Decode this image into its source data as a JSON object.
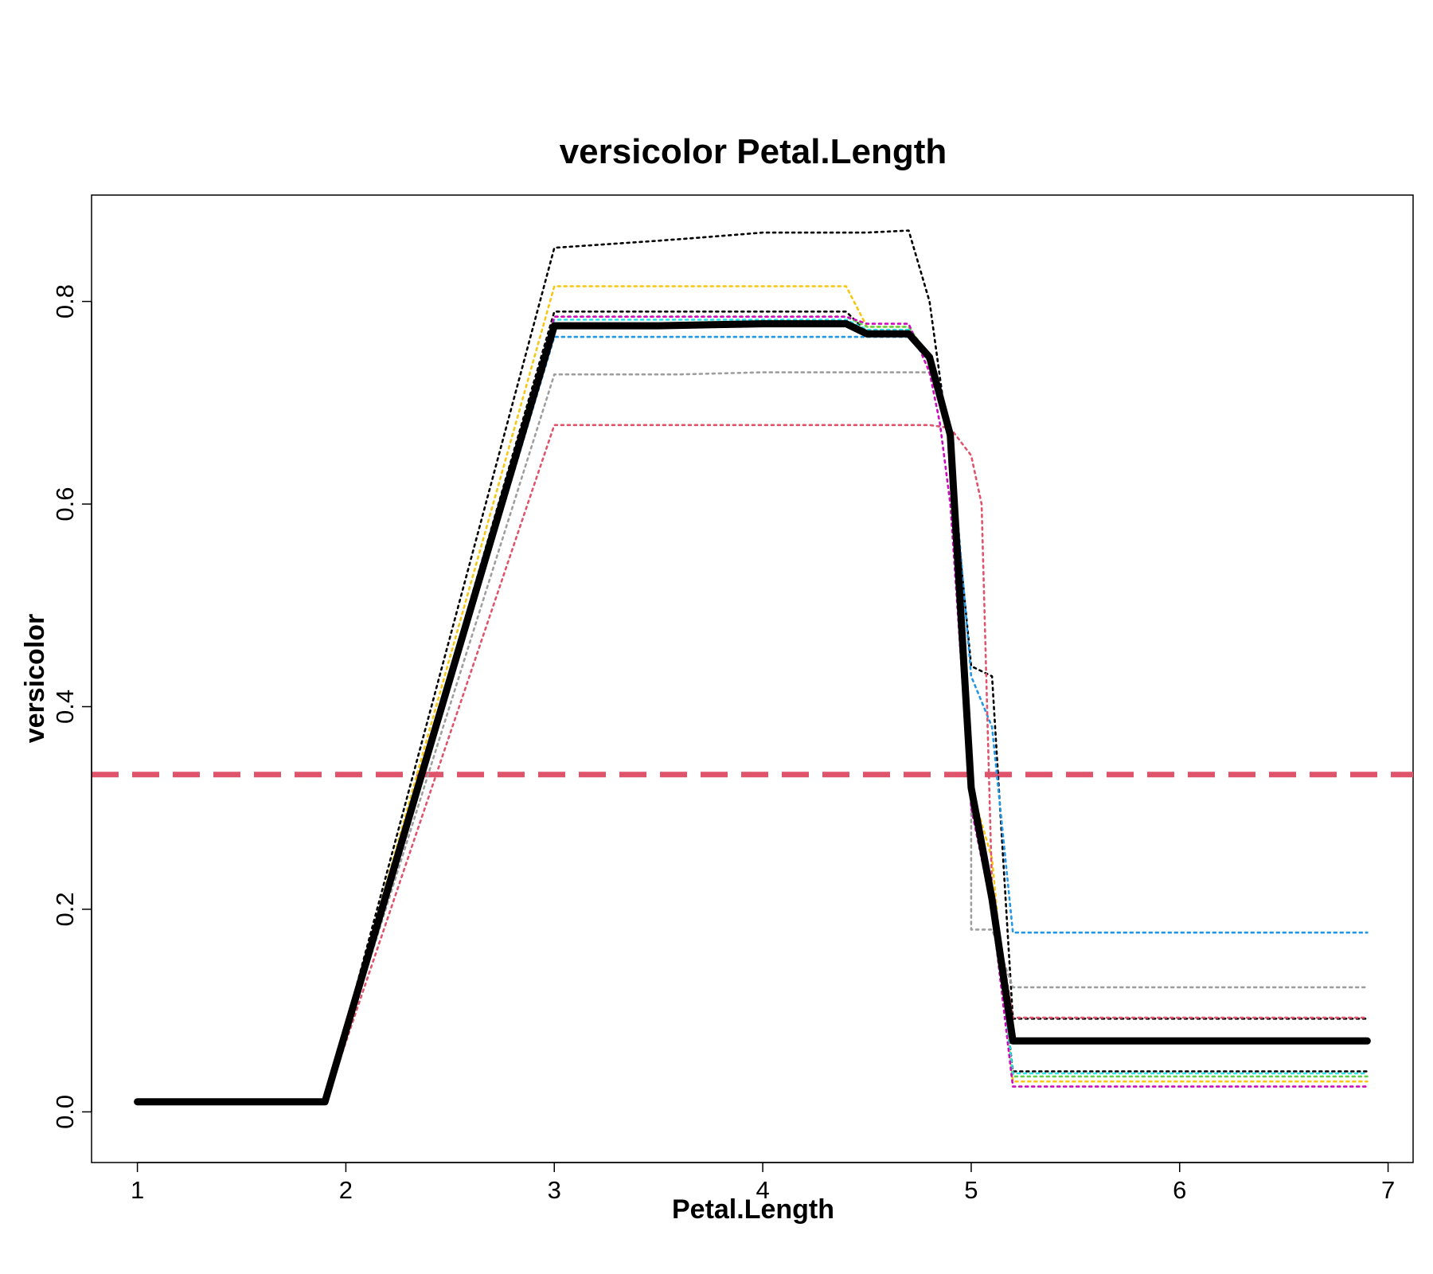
{
  "chart_data": {
    "type": "line",
    "title": "versicolor  Petal.Length",
    "xlabel": "Petal.Length",
    "ylabel": "versicolor",
    "xlim": [
      0.78,
      7.12
    ],
    "ylim": [
      -0.05,
      0.905
    ],
    "x_ticks": [
      "1",
      "2",
      "3",
      "4",
      "5",
      "6",
      "7"
    ],
    "y_ticks": [
      "0.0",
      "0.2",
      "0.4",
      "0.6",
      "0.8"
    ],
    "grid": false,
    "legend": "none",
    "reference_line": {
      "y": 0.333,
      "color": "#DF536B",
      "style": "dashed"
    },
    "series": [
      {
        "color": "#000000",
        "style": "dotted",
        "x": [
          1.0,
          1.9,
          3.0,
          3.5,
          3.7,
          4.0,
          4.2,
          4.5,
          4.7,
          4.8,
          4.9,
          5.0,
          5.1,
          5.2,
          5.2,
          6.9
        ],
        "y": [
          0.008,
          0.008,
          0.853,
          0.86,
          0.863,
          0.868,
          0.868,
          0.868,
          0.87,
          0.8,
          0.65,
          0.44,
          0.43,
          0.092,
          0.092,
          0.092
        ]
      },
      {
        "color": "#F5C710",
        "style": "dotted",
        "x": [
          1.0,
          1.9,
          3.0,
          4.4,
          4.5,
          4.7,
          4.8,
          4.9,
          5.0,
          5.1,
          5.2,
          6.9
        ],
        "y": [
          0.01,
          0.01,
          0.815,
          0.815,
          0.775,
          0.775,
          0.745,
          0.67,
          0.32,
          0.25,
          0.03,
          0.03
        ]
      },
      {
        "color": "#000000",
        "style": "dotted",
        "x": [
          1.0,
          1.9,
          3.0,
          4.4,
          4.5,
          4.7,
          4.8,
          4.9,
          5.0,
          5.1,
          5.2,
          6.9
        ],
        "y": [
          0.01,
          0.01,
          0.79,
          0.79,
          0.77,
          0.77,
          0.745,
          0.67,
          0.32,
          0.22,
          0.04,
          0.04
        ]
      },
      {
        "color": "#61D04F",
        "style": "dotted",
        "x": [
          1.0,
          1.9,
          3.0,
          4.4,
          4.5,
          4.7,
          4.8,
          4.9,
          5.0,
          5.1,
          5.2,
          6.9
        ],
        "y": [
          0.01,
          0.01,
          0.785,
          0.785,
          0.775,
          0.775,
          0.745,
          0.67,
          0.3,
          0.22,
          0.035,
          0.035
        ]
      },
      {
        "color": "#2297E6",
        "style": "dotted",
        "x": [
          1.0,
          1.9,
          3.0,
          4.7,
          4.8,
          4.9,
          5.0,
          5.1,
          5.2,
          6.9
        ],
        "y": [
          0.01,
          0.01,
          0.765,
          0.765,
          0.74,
          0.67,
          0.43,
          0.38,
          0.177,
          0.177
        ]
      },
      {
        "color": "#28E2E5",
        "style": "dotted",
        "x": [
          1.0,
          1.9,
          3.0,
          4.4,
          4.5,
          4.7,
          4.8,
          4.9,
          5.0,
          5.1,
          5.2,
          6.9
        ],
        "y": [
          0.01,
          0.01,
          0.782,
          0.782,
          0.772,
          0.772,
          0.745,
          0.67,
          0.32,
          0.22,
          0.038,
          0.038
        ]
      },
      {
        "color": "#9E9E9E",
        "style": "dotted",
        "x": [
          1.0,
          1.9,
          3.0,
          3.6,
          4.0,
          4.5,
          4.8,
          4.9,
          5.0,
          5.0,
          5.1,
          5.2,
          6.9
        ],
        "y": [
          0.01,
          0.01,
          0.728,
          0.728,
          0.73,
          0.73,
          0.73,
          0.67,
          0.36,
          0.18,
          0.18,
          0.123,
          0.123
        ]
      },
      {
        "color": "#DF536B",
        "style": "dotted",
        "x": [
          1.0,
          1.9,
          3.0,
          4.8,
          4.9,
          5.0,
          5.05,
          5.1,
          5.2,
          6.9
        ],
        "y": [
          0.008,
          0.008,
          0.678,
          0.678,
          0.675,
          0.648,
          0.6,
          0.22,
          0.093,
          0.093
        ]
      },
      {
        "color": "#CD0BBC",
        "style": "dotted",
        "x": [
          1.0,
          1.9,
          3.0,
          4.4,
          4.5,
          4.7,
          4.8,
          4.85,
          4.9,
          5.0,
          5.1,
          5.2,
          6.9
        ],
        "y": [
          0.01,
          0.01,
          0.785,
          0.785,
          0.778,
          0.778,
          0.73,
          0.68,
          0.6,
          0.3,
          0.2,
          0.025,
          0.025
        ]
      },
      {
        "color": "#000000",
        "style": "solid",
        "weight": "bold",
        "x": [
          1.0,
          1.9,
          3.0,
          3.5,
          4.0,
          4.4,
          4.5,
          4.7,
          4.8,
          4.9,
          5.0,
          5.1,
          5.2,
          6.9
        ],
        "y": [
          0.01,
          0.01,
          0.776,
          0.776,
          0.778,
          0.778,
          0.768,
          0.768,
          0.745,
          0.668,
          0.32,
          0.21,
          0.07,
          0.07
        ]
      }
    ]
  }
}
